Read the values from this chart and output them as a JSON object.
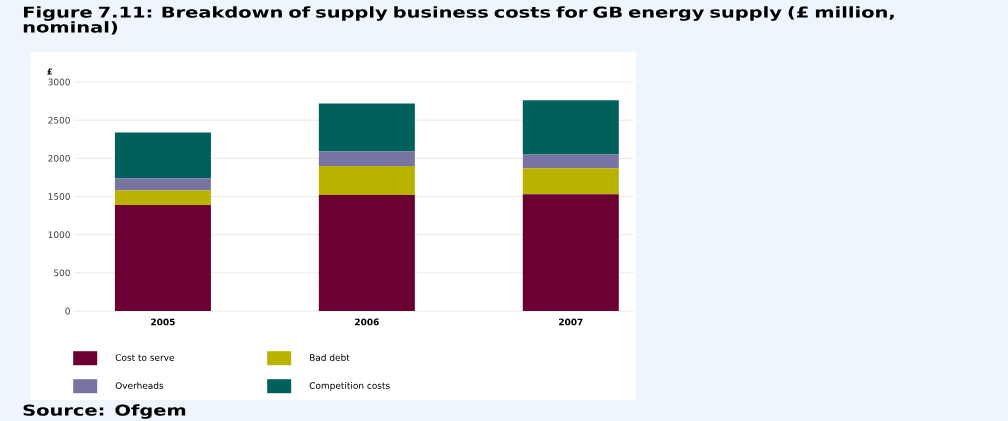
{
  "chart_data": {
    "type": "bar",
    "title": "Figure 7.11: Breakdown of supply business costs for GB energy supply (£ million, nominal)",
    "ylabel": "£",
    "categories": [
      "2005",
      "2006",
      "2007"
    ],
    "stacked": true,
    "series": [
      {
        "name": "Cost to serve",
        "color": "#6b0033",
        "values": [
          1390,
          1520,
          1530
        ]
      },
      {
        "name": "Bad debt",
        "color": "#b9b300",
        "values": [
          190,
          380,
          340
        ]
      },
      {
        "name": "Overheads",
        "color": "#7773a3",
        "values": [
          160,
          190,
          180
        ]
      },
      {
        "name": "Competition costs",
        "color": "#00605c",
        "values": [
          600,
          630,
          710
        ]
      }
    ],
    "ylim": [
      0,
      3000
    ],
    "yticks": [
      0,
      500,
      1000,
      1500,
      2000,
      2500,
      3000
    ],
    "grid": "y",
    "legend": "bottom",
    "annotations": [
      "Source: Ofgem"
    ]
  }
}
